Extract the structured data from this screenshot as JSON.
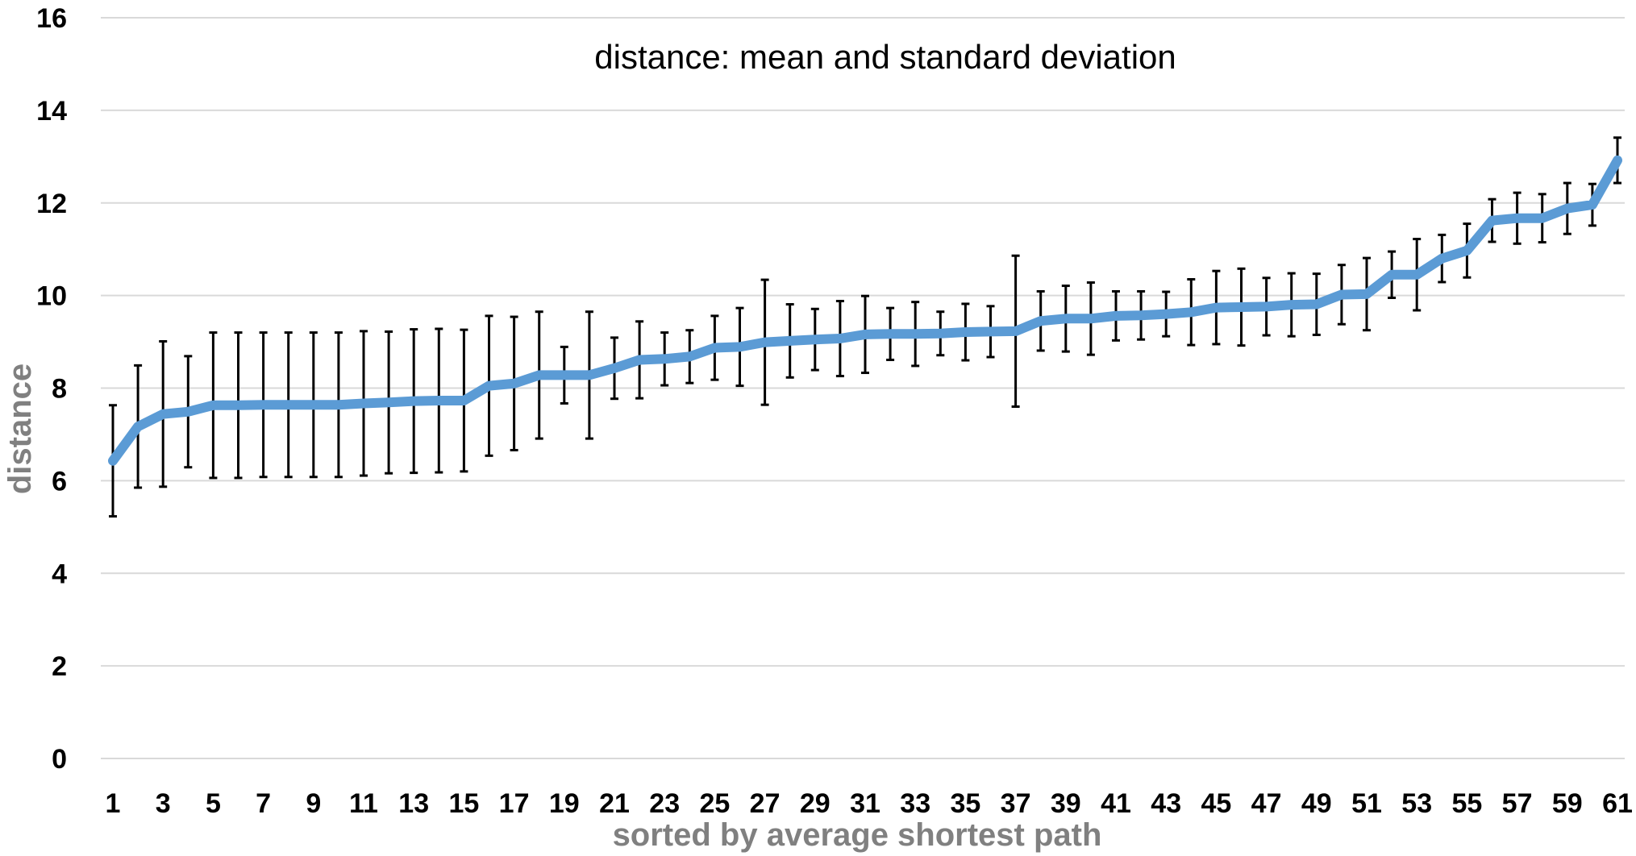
{
  "chart_data": {
    "type": "line",
    "title": "distance: mean and standard deviation",
    "xlabel": "sorted by average shortest path",
    "ylabel": "distance",
    "ylim": [
      0,
      16
    ],
    "yticks": [
      0,
      2,
      4,
      6,
      8,
      10,
      12,
      14,
      16
    ],
    "xticks": [
      1,
      3,
      5,
      7,
      9,
      11,
      13,
      15,
      17,
      19,
      21,
      23,
      25,
      27,
      29,
      31,
      33,
      35,
      37,
      39,
      41,
      43,
      45,
      47,
      49,
      51,
      53,
      55,
      57,
      59,
      61
    ],
    "grid": "horizontal",
    "legend": "none",
    "line_color": "#5B9BD5",
    "errorbar_color": "#000000",
    "x": [
      1,
      2,
      3,
      4,
      5,
      6,
      7,
      8,
      9,
      10,
      11,
      12,
      13,
      14,
      15,
      16,
      17,
      18,
      19,
      20,
      21,
      22,
      23,
      24,
      25,
      26,
      27,
      28,
      29,
      30,
      31,
      32,
      33,
      34,
      35,
      36,
      37,
      38,
      39,
      40,
      41,
      42,
      43,
      44,
      45,
      46,
      47,
      48,
      49,
      50,
      51,
      52,
      53,
      54,
      55,
      56,
      57,
      58,
      59,
      60,
      61
    ],
    "mean": [
      6.43,
      7.17,
      7.44,
      7.49,
      7.63,
      7.63,
      7.64,
      7.64,
      7.64,
      7.64,
      7.67,
      7.69,
      7.72,
      7.73,
      7.73,
      8.05,
      8.1,
      8.28,
      8.28,
      8.28,
      8.43,
      8.61,
      8.63,
      8.68,
      8.87,
      8.89,
      8.99,
      9.02,
      9.05,
      9.07,
      9.16,
      9.17,
      9.17,
      9.18,
      9.21,
      9.22,
      9.23,
      9.45,
      9.5,
      9.5,
      9.56,
      9.57,
      9.6,
      9.64,
      9.74,
      9.75,
      9.76,
      9.8,
      9.81,
      10.02,
      10.03,
      10.45,
      10.45,
      10.8,
      10.97,
      11.62,
      11.67,
      11.67,
      11.88,
      11.96,
      12.92
    ],
    "std": [
      1.2,
      1.32,
      1.57,
      1.2,
      1.57,
      1.57,
      1.56,
      1.56,
      1.56,
      1.56,
      1.56,
      1.53,
      1.55,
      1.55,
      1.53,
      1.51,
      1.44,
      1.37,
      0.61,
      1.37,
      0.66,
      0.83,
      0.57,
      0.57,
      0.69,
      0.84,
      1.35,
      0.79,
      0.66,
      0.81,
      0.83,
      0.56,
      0.69,
      0.47,
      0.61,
      0.55,
      1.63,
      0.64,
      0.71,
      0.78,
      0.53,
      0.52,
      0.48,
      0.71,
      0.79,
      0.83,
      0.62,
      0.68,
      0.66,
      0.64,
      0.78,
      0.5,
      0.77,
      0.51,
      0.58,
      0.46,
      0.55,
      0.52,
      0.55,
      0.45,
      0.49
    ]
  }
}
